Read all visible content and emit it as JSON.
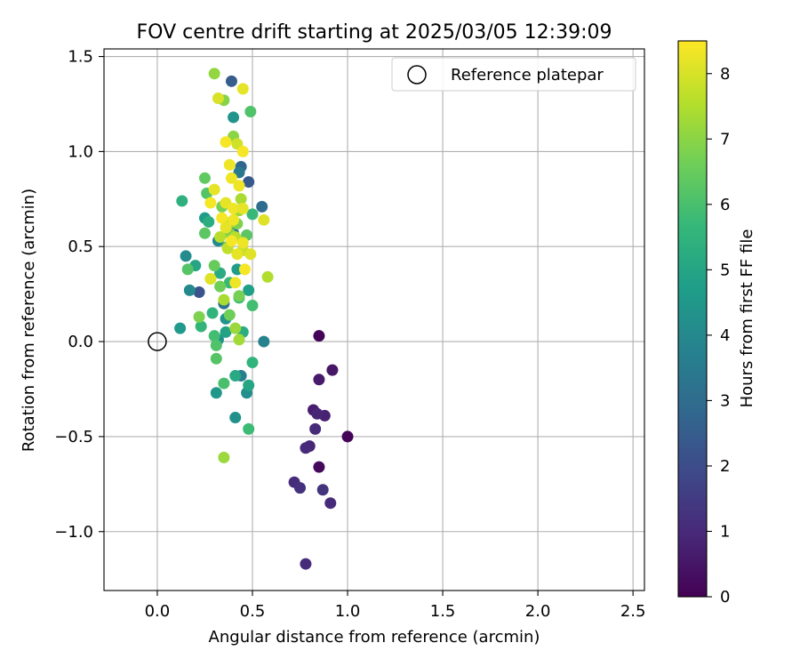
{
  "chart_data": {
    "type": "scatter",
    "title": "FOV centre drift starting at 2025/03/05 12:39:09",
    "xlabel": "Angular distance from reference (arcmin)",
    "ylabel": "Rotation from reference (arcmin)",
    "xlim": [
      -0.28,
      2.56
    ],
    "ylim": [
      -1.31,
      1.54
    ],
    "x_ticks": [
      0.0,
      0.5,
      1.0,
      1.5,
      2.0,
      2.5
    ],
    "x_tick_labels": [
      "0.0",
      "0.5",
      "1.0",
      "1.5",
      "2.0",
      "2.5"
    ],
    "y_ticks": [
      -1.0,
      -0.5,
      0.0,
      0.5,
      1.0,
      1.5
    ],
    "y_tick_labels": [
      "−1.0",
      "−0.5",
      "0.0",
      "0.5",
      "1.0",
      "1.5"
    ],
    "grid": true,
    "legend": {
      "location": "top-right",
      "entries": [
        {
          "label": "Reference platepar",
          "marker": "open-circle"
        }
      ]
    },
    "reference_point": {
      "x": 0.0,
      "y": 0.0
    },
    "colorbar": {
      "label": "Hours from first FF file",
      "colormap": "viridis",
      "range": [
        0,
        8.5
      ],
      "ticks": [
        0,
        1,
        2,
        3,
        4,
        5,
        6,
        7,
        8
      ],
      "tick_labels": [
        "0",
        "1",
        "2",
        "3",
        "4",
        "5",
        "6",
        "7",
        "8"
      ]
    },
    "colormap_stops": [
      "#440154",
      "#482878",
      "#3e4989",
      "#31688e",
      "#26828e",
      "#1f9e89",
      "#35b779",
      "#6ece58",
      "#b5de2b",
      "#fde725"
    ],
    "points": [
      {
        "x": 0.85,
        "y": 0.03,
        "t": 0.1
      },
      {
        "x": 1.0,
        "y": -0.5,
        "t": 0.1
      },
      {
        "x": 0.85,
        "y": -0.66,
        "t": 0.2
      },
      {
        "x": 0.92,
        "y": -0.15,
        "t": 0.5
      },
      {
        "x": 0.85,
        "y": -0.2,
        "t": 0.6
      },
      {
        "x": 0.82,
        "y": -0.36,
        "t": 0.7
      },
      {
        "x": 0.88,
        "y": -0.39,
        "t": 0.8
      },
      {
        "x": 0.84,
        "y": -0.38,
        "t": 0.9
      },
      {
        "x": 0.83,
        "y": -0.46,
        "t": 1.0
      },
      {
        "x": 0.8,
        "y": -0.55,
        "t": 0.9
      },
      {
        "x": 0.78,
        "y": -0.56,
        "t": 1.0
      },
      {
        "x": 0.72,
        "y": -0.74,
        "t": 1.1
      },
      {
        "x": 0.75,
        "y": -0.77,
        "t": 1.2
      },
      {
        "x": 0.87,
        "y": -0.78,
        "t": 1.3
      },
      {
        "x": 0.91,
        "y": -0.85,
        "t": 1.0
      },
      {
        "x": 0.78,
        "y": -1.17,
        "t": 1.1
      },
      {
        "x": 0.39,
        "y": 1.37,
        "t": 2.5
      },
      {
        "x": 0.48,
        "y": 0.84,
        "t": 2.4
      },
      {
        "x": 0.55,
        "y": 0.71,
        "t": 3.0
      },
      {
        "x": 0.22,
        "y": 0.26,
        "t": 2.2
      },
      {
        "x": 0.44,
        "y": 0.92,
        "t": 2.8
      },
      {
        "x": 0.4,
        "y": 0.57,
        "t": 3.3
      },
      {
        "x": 0.43,
        "y": 0.89,
        "t": 3.4
      },
      {
        "x": 0.35,
        "y": 0.2,
        "t": 3.2
      },
      {
        "x": 0.56,
        "y": 0.0,
        "t": 3.8
      },
      {
        "x": 0.44,
        "y": -0.18,
        "t": 3.6
      },
      {
        "x": 0.47,
        "y": -0.27,
        "t": 4.2
      },
      {
        "x": 0.41,
        "y": -0.4,
        "t": 4.3
      },
      {
        "x": 0.4,
        "y": 1.18,
        "t": 4.4
      },
      {
        "x": 0.15,
        "y": 0.45,
        "t": 4.1
      },
      {
        "x": 0.17,
        "y": 0.27,
        "t": 4.0
      },
      {
        "x": 0.32,
        "y": 0.53,
        "t": 4.0
      },
      {
        "x": 0.36,
        "y": 0.12,
        "t": 4.4
      },
      {
        "x": 0.32,
        "y": 0.01,
        "t": 4.3
      },
      {
        "x": 0.31,
        "y": -0.27,
        "t": 4.5
      },
      {
        "x": 0.12,
        "y": 0.07,
        "t": 4.6
      },
      {
        "x": 0.25,
        "y": 0.65,
        "t": 4.7
      },
      {
        "x": 0.48,
        "y": 0.27,
        "t": 4.8
      },
      {
        "x": 0.42,
        "y": 0.38,
        "t": 4.7
      },
      {
        "x": 0.2,
        "y": 0.4,
        "t": 5.0
      },
      {
        "x": 0.36,
        "y": 0.05,
        "t": 4.9
      },
      {
        "x": 0.41,
        "y": -0.18,
        "t": 5.1
      },
      {
        "x": 0.48,
        "y": -0.23,
        "t": 5.0
      },
      {
        "x": 0.33,
        "y": 0.36,
        "t": 5.2
      },
      {
        "x": 0.45,
        "y": 0.05,
        "t": 5.3
      },
      {
        "x": 0.13,
        "y": 0.74,
        "t": 5.4
      },
      {
        "x": 0.27,
        "y": 0.63,
        "t": 5.3
      },
      {
        "x": 0.5,
        "y": -0.11,
        "t": 5.5
      },
      {
        "x": 0.23,
        "y": 0.08,
        "t": 5.6
      },
      {
        "x": 0.29,
        "y": 0.15,
        "t": 5.5
      },
      {
        "x": 0.38,
        "y": 0.31,
        "t": 5.7
      },
      {
        "x": 0.5,
        "y": 0.67,
        "t": 5.7
      },
      {
        "x": 0.43,
        "y": 0.23,
        "t": 5.8
      },
      {
        "x": 0.5,
        "y": 0.19,
        "t": 5.9
      },
      {
        "x": 0.48,
        "y": -0.46,
        "t": 5.8
      },
      {
        "x": 0.35,
        "y": -0.22,
        "t": 6.0
      },
      {
        "x": 0.3,
        "y": 0.03,
        "t": 5.9
      },
      {
        "x": 0.31,
        "y": -0.02,
        "t": 6.1
      },
      {
        "x": 0.31,
        "y": -0.09,
        "t": 6.2
      },
      {
        "x": 0.26,
        "y": 0.78,
        "t": 6.2
      },
      {
        "x": 0.25,
        "y": 0.57,
        "t": 6.3
      },
      {
        "x": 0.49,
        "y": 1.21,
        "t": 6.1
      },
      {
        "x": 0.16,
        "y": 0.38,
        "t": 6.2
      },
      {
        "x": 0.25,
        "y": 0.86,
        "t": 6.4
      },
      {
        "x": 0.47,
        "y": 0.56,
        "t": 6.3
      },
      {
        "x": 0.37,
        "y": 0.5,
        "t": 6.5
      },
      {
        "x": 0.38,
        "y": 0.14,
        "t": 6.6
      },
      {
        "x": 0.43,
        "y": 0.24,
        "t": 6.7
      },
      {
        "x": 0.3,
        "y": 0.4,
        "t": 6.5
      },
      {
        "x": 0.33,
        "y": 0.29,
        "t": 6.6
      },
      {
        "x": 0.22,
        "y": 0.13,
        "t": 6.8
      },
      {
        "x": 0.34,
        "y": 0.71,
        "t": 6.7
      },
      {
        "x": 0.42,
        "y": 0.62,
        "t": 6.8
      },
      {
        "x": 0.38,
        "y": 0.57,
        "t": 6.9
      },
      {
        "x": 0.3,
        "y": 1.41,
        "t": 7.1
      },
      {
        "x": 0.35,
        "y": 1.27,
        "t": 6.9
      },
      {
        "x": 0.4,
        "y": 1.08,
        "t": 7.0
      },
      {
        "x": 0.35,
        "y": -0.61,
        "t": 7.2
      },
      {
        "x": 0.28,
        "y": 0.33,
        "t": 7.3
      },
      {
        "x": 0.41,
        "y": 0.07,
        "t": 7.2
      },
      {
        "x": 0.43,
        "y": 0.01,
        "t": 7.3
      },
      {
        "x": 0.35,
        "y": 0.22,
        "t": 7.4
      },
      {
        "x": 0.39,
        "y": 0.63,
        "t": 7.3
      },
      {
        "x": 0.43,
        "y": 0.69,
        "t": 7.2
      },
      {
        "x": 0.44,
        "y": 0.75,
        "t": 7.4
      },
      {
        "x": 0.58,
        "y": 0.34,
        "t": 7.5
      },
      {
        "x": 0.33,
        "y": 0.55,
        "t": 7.6
      },
      {
        "x": 0.37,
        "y": 0.49,
        "t": 7.7
      },
      {
        "x": 0.41,
        "y": 0.55,
        "t": 7.6
      },
      {
        "x": 0.45,
        "y": 0.48,
        "t": 7.8
      },
      {
        "x": 0.42,
        "y": 1.04,
        "t": 7.9
      },
      {
        "x": 0.32,
        "y": 1.28,
        "t": 8.0
      },
      {
        "x": 0.45,
        "y": 1.33,
        "t": 8.2
      },
      {
        "x": 0.36,
        "y": 1.05,
        "t": 8.4
      },
      {
        "x": 0.43,
        "y": 0.82,
        "t": 8.3
      },
      {
        "x": 0.3,
        "y": 0.8,
        "t": 8.2
      },
      {
        "x": 0.38,
        "y": 0.93,
        "t": 8.3
      },
      {
        "x": 0.45,
        "y": 1.0,
        "t": 8.4
      },
      {
        "x": 0.39,
        "y": 0.86,
        "t": 8.3
      },
      {
        "x": 0.36,
        "y": 0.73,
        "t": 8.2
      },
      {
        "x": 0.28,
        "y": 0.73,
        "t": 8.4
      },
      {
        "x": 0.4,
        "y": 0.7,
        "t": 8.3
      },
      {
        "x": 0.45,
        "y": 0.7,
        "t": 8.2
      },
      {
        "x": 0.34,
        "y": 0.65,
        "t": 8.4
      },
      {
        "x": 0.4,
        "y": 0.64,
        "t": 8.3
      },
      {
        "x": 0.56,
        "y": 0.64,
        "t": 8.1
      },
      {
        "x": 0.36,
        "y": 0.6,
        "t": 8.2
      },
      {
        "x": 0.39,
        "y": 0.53,
        "t": 8.4
      },
      {
        "x": 0.45,
        "y": 0.52,
        "t": 8.3
      },
      {
        "x": 0.42,
        "y": 0.46,
        "t": 8.2
      },
      {
        "x": 0.49,
        "y": 0.46,
        "t": 8.1
      },
      {
        "x": 0.46,
        "y": 0.38,
        "t": 8.4
      },
      {
        "x": 0.41,
        "y": 0.31,
        "t": 8.3
      },
      {
        "x": 0.28,
        "y": 0.33,
        "t": 8.1
      }
    ]
  }
}
